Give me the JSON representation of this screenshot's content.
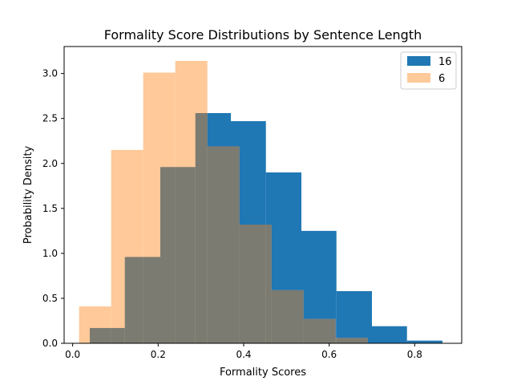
{
  "chart_data": {
    "type": "bar",
    "subtype": "overlaid-histogram",
    "title": "Formality Score Distributions by Sentence Length",
    "xlabel": "Formality Scores",
    "ylabel": "Probability Density",
    "xlim": [
      -0.02,
      0.91
    ],
    "ylim": [
      0,
      3.3
    ],
    "xticks": [
      0.0,
      0.2,
      0.4,
      0.6,
      0.8
    ],
    "xtick_labels": [
      "0.0",
      "0.2",
      "0.4",
      "0.6",
      "0.8"
    ],
    "yticks": [
      0.0,
      0.5,
      1.0,
      1.5,
      2.0,
      2.5,
      3.0
    ],
    "ytick_labels": [
      "0.0",
      "0.5",
      "1.0",
      "1.5",
      "2.0",
      "2.5",
      "3.0"
    ],
    "grid": false,
    "legend_position": "top-right",
    "overlap_color": "#7b7b72",
    "series": [
      {
        "name": "16",
        "color": "#1f77b4",
        "bin_edges": [
          0.04,
          0.122,
          0.205,
          0.287,
          0.37,
          0.452,
          0.535,
          0.617,
          0.7,
          0.782,
          0.865
        ],
        "values": [
          0.17,
          0.96,
          1.96,
          2.56,
          2.47,
          1.9,
          1.25,
          0.58,
          0.19,
          0.03
        ]
      },
      {
        "name": "6",
        "color": "#ffc999",
        "bin_edges": [
          0.015,
          0.09,
          0.165,
          0.24,
          0.315,
          0.39,
          0.465,
          0.54,
          0.615,
          0.69
        ],
        "values": [
          0.41,
          2.15,
          3.01,
          3.14,
          2.19,
          1.32,
          0.59,
          0.27,
          0.06
        ]
      }
    ]
  }
}
